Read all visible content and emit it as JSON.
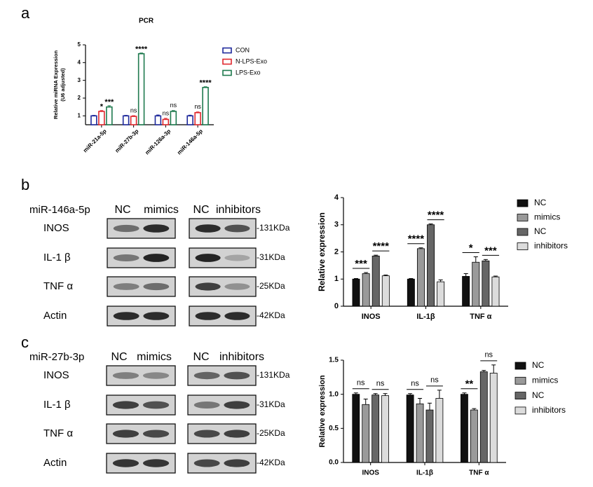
{
  "panel_labels": [
    "a",
    "b",
    "c"
  ],
  "chart_data": [
    {
      "type": "bar",
      "title": "PCR",
      "ylabel": [
        "Relative miRNA Expression",
        "(U6 adjusted)"
      ],
      "categories": [
        "miR-21a-5p",
        "miR-27b-3p",
        "miR-126a-3p",
        "miR-146a-5p"
      ],
      "series": [
        {
          "name": "CON",
          "color": "#1f2a9c",
          "values": [
            1.0,
            1.0,
            1.0,
            1.0
          ],
          "errors": [
            0.03,
            0.03,
            0.05,
            0.04
          ]
        },
        {
          "name": "N-LPS-Exo",
          "color": "#e0282e",
          "values": [
            1.25,
            0.97,
            0.8,
            1.18
          ],
          "errors": [
            0.05,
            0.04,
            0.06,
            0.04
          ],
          "labels": [
            "*",
            "ns",
            "ns",
            "ns"
          ]
        },
        {
          "name": "LPS-Exo",
          "color": "#1e7a4e",
          "values": [
            1.5,
            4.5,
            1.25,
            2.6
          ],
          "errors": [
            0.07,
            0.04,
            0.05,
            0.04
          ],
          "labels": [
            "***",
            "****",
            "ns",
            "****"
          ]
        }
      ],
      "ylim": [
        0.5,
        5
      ],
      "yticks": [
        1,
        2,
        3,
        4,
        5
      ],
      "outlined": true,
      "rotate_xlabels": 45
    },
    {
      "type": "bar",
      "ylabel": "Relative expression",
      "categories": [
        "INOS",
        "IL-1β",
        "TNF α"
      ],
      "series": [
        {
          "name": "NC",
          "color": "#111111",
          "values": [
            1.0,
            1.0,
            1.1
          ],
          "errors": [
            0.02,
            0.02,
            0.1
          ]
        },
        {
          "name": "mimics",
          "color": "#9a9a9a",
          "values": [
            1.2,
            2.12,
            1.62
          ],
          "errors": [
            0.04,
            0.03,
            0.2
          ]
        },
        {
          "name": "NC",
          "color": "#666666",
          "values": [
            1.85,
            3.0,
            1.67
          ],
          "errors": [
            0.03,
            0.03,
            0.05
          ]
        },
        {
          "name": "inhibitors",
          "color": "#dcdcdc",
          "values": [
            1.12,
            0.9,
            1.08
          ],
          "errors": [
            0.03,
            0.07,
            0.03
          ]
        }
      ],
      "annotations": [
        [
          "***",
          "****"
        ],
        [
          "****",
          "****"
        ],
        [
          "*",
          "***"
        ]
      ],
      "ylim": [
        0,
        4
      ],
      "yticks": [
        0,
        1,
        2,
        3,
        4
      ]
    },
    {
      "type": "bar",
      "ylabel": "Relative expression",
      "categories": [
        "INOS",
        "IL-1β",
        "TNF α"
      ],
      "series": [
        {
          "name": "NC",
          "color": "#111111",
          "values": [
            1.0,
            0.99,
            1.0
          ],
          "errors": [
            0.02,
            0.02,
            0.02
          ]
        },
        {
          "name": "mimics",
          "color": "#9a9a9a",
          "values": [
            0.85,
            0.86,
            0.77
          ],
          "errors": [
            0.08,
            0.08,
            0.02
          ]
        },
        {
          "name": "NC",
          "color": "#666666",
          "values": [
            0.99,
            0.77,
            1.33
          ],
          "errors": [
            0.02,
            0.1,
            0.02
          ]
        },
        {
          "name": "inhibitors",
          "color": "#dcdcdc",
          "values": [
            0.98,
            0.94,
            1.31
          ],
          "errors": [
            0.03,
            0.12,
            0.12
          ]
        }
      ],
      "annotations": [
        [
          "ns",
          "ns"
        ],
        [
          "ns",
          "ns"
        ],
        [
          "**",
          "ns"
        ]
      ],
      "ylim": [
        0,
        1.5
      ],
      "yticks": [
        {
          "value": 0,
          "label": "0.0"
        },
        0.5,
        {
          "value": 1,
          "label": "1.0"
        },
        1.5
      ]
    }
  ],
  "blots": [
    {
      "title": "miR-146a-5p",
      "lanes": [
        "NC",
        "mimics",
        "NC",
        "inhibitors"
      ],
      "rows": [
        "INOS",
        "IL-1 β",
        "TNF α",
        "Actin"
      ],
      "sizes": [
        "-131KDa",
        "-31KDa",
        "-25KDa",
        "-42KDa"
      ]
    },
    {
      "title": "miR-27b-3p",
      "lanes": [
        "NC",
        "mimics",
        "NC",
        "inhibitors"
      ],
      "rows": [
        "INOS",
        "IL-1 β",
        "TNF α",
        "Actin"
      ],
      "sizes": [
        "-131KDa",
        "-31KDa",
        "-25KDa",
        "-42KDa"
      ]
    }
  ]
}
